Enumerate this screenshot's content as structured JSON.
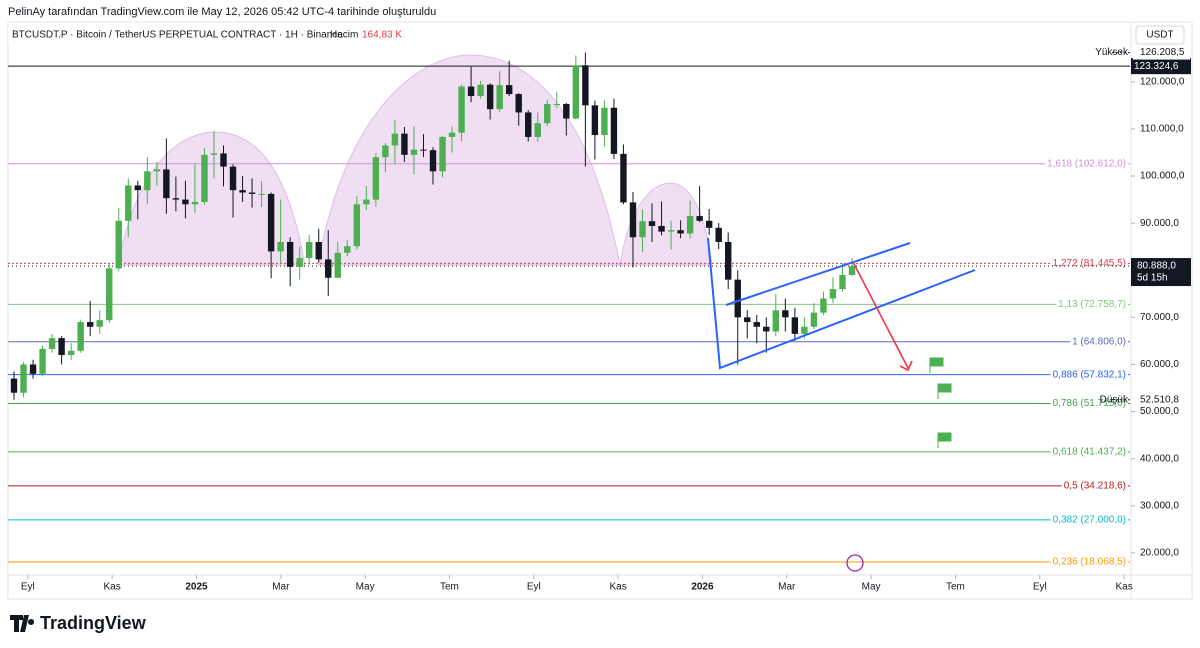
{
  "header": {
    "credit": "PelinAy tarafından TradingView.com ile May 12, 2026 05:42 UTC-4 tarihinde oluşturuldu",
    "symbol": "BTCUSDT.P · Bitcoin / TetherUS PERPETUAL CONTRACT · 1H · Binance",
    "volume_label": "Hacim",
    "volume": "164,83 K"
  },
  "axis_unit": "USDT",
  "footer": {
    "brand": "TradingView"
  },
  "chart_data": {
    "type": "candlestick",
    "up_color": "#4caf50",
    "down_color": "#131722",
    "candles": [
      [
        57000,
        58500,
        52510.8,
        54000
      ],
      [
        54000,
        60500,
        53000,
        60000
      ],
      [
        60000,
        61000,
        57000,
        58000
      ],
      [
        58000,
        64000,
        57500,
        63300
      ],
      [
        63300,
        66500,
        62500,
        65600
      ],
      [
        65600,
        66000,
        60000,
        62000
      ],
      [
        62000,
        64500,
        61000,
        62900
      ],
      [
        62900,
        69500,
        62500,
        69000
      ],
      [
        69000,
        73500,
        66000,
        68000
      ],
      [
        68000,
        71500,
        66500,
        69400
      ],
      [
        69400,
        81500,
        68800,
        80400
      ],
      [
        80400,
        93200,
        79800,
        90500
      ],
      [
        90500,
        99500,
        87000,
        98000
      ],
      [
        98000,
        99000,
        90800,
        97000
      ],
      [
        97000,
        104000,
        94000,
        101000
      ],
      [
        101000,
        103000,
        98000,
        101400
      ],
      [
        101400,
        108000,
        92000,
        95300
      ],
      [
        95300,
        99900,
        92500,
        95000
      ],
      [
        95000,
        99000,
        91000,
        94000
      ],
      [
        94000,
        102700,
        92200,
        94500
      ],
      [
        94500,
        106000,
        93900,
        104500
      ],
      [
        104500,
        109600,
        99500,
        104800
      ],
      [
        104800,
        106500,
        97800,
        102000
      ],
      [
        102000,
        102500,
        91200,
        97000
      ],
      [
        97000,
        100000,
        94500,
        96500
      ],
      [
        96500,
        99500,
        93300,
        96200
      ],
      [
        96200,
        98900,
        93400,
        96200
      ],
      [
        96200,
        96500,
        78300,
        84000
      ],
      [
        84000,
        95000,
        81500,
        86000
      ],
      [
        86000,
        87000,
        76600,
        80700
      ],
      [
        80700,
        85000,
        78000,
        82600
      ],
      [
        82600,
        87500,
        81200,
        86000
      ],
      [
        86000,
        88800,
        81600,
        82300
      ],
      [
        82300,
        88500,
        74500,
        78400
      ],
      [
        78400,
        86000,
        78300,
        83700
      ],
      [
        83700,
        86400,
        83000,
        85100
      ],
      [
        85100,
        95700,
        84300,
        94000
      ],
      [
        94000,
        97900,
        92800,
        95000
      ],
      [
        95000,
        104900,
        93500,
        104000
      ],
      [
        104000,
        107000,
        100800,
        106500
      ],
      [
        106500,
        111900,
        102600,
        109000
      ],
      [
        109000,
        110400,
        103000,
        104500
      ],
      [
        104500,
        110600,
        100400,
        105600
      ],
      [
        105600,
        108900,
        104000,
        105500
      ],
      [
        105500,
        106100,
        98200,
        101000
      ],
      [
        101000,
        108500,
        99700,
        108300
      ],
      [
        108300,
        110500,
        105000,
        109200
      ],
      [
        109200,
        119400,
        107400,
        119000
      ],
      [
        119000,
        123200,
        115700,
        117000
      ],
      [
        117000,
        120200,
        116500,
        119400
      ],
      [
        119400,
        119700,
        112000,
        114200
      ],
      [
        114200,
        122300,
        113700,
        119300
      ],
      [
        119300,
        124500,
        117000,
        117400
      ],
      [
        117400,
        117600,
        110700,
        113500
      ],
      [
        113500,
        114000,
        107300,
        108300
      ],
      [
        108300,
        113500,
        107300,
        111200
      ],
      [
        111200,
        116200,
        110600,
        115300
      ],
      [
        115300,
        117900,
        114400,
        115300
      ],
      [
        115300,
        115500,
        108600,
        112200
      ],
      [
        112200,
        125600,
        112000,
        123500
      ],
      [
        123500,
        126208.5,
        102000,
        115000
      ],
      [
        115000,
        116000,
        103500,
        108700
      ],
      [
        108700,
        116100,
        106300,
        114500
      ],
      [
        114500,
        116400,
        103600,
        104700
      ],
      [
        104700,
        106700,
        94000,
        94400
      ],
      [
        94400,
        96600,
        80600,
        87000
      ],
      [
        87000,
        92900,
        83800,
        90400
      ],
      [
        90400,
        94200,
        86000,
        89400
      ],
      [
        89400,
        94600,
        87400,
        88200
      ],
      [
        88200,
        90500,
        84400,
        88500
      ],
      [
        88500,
        90600,
        86800,
        87800
      ],
      [
        87800,
        94800,
        86800,
        91500
      ],
      [
        91500,
        97900,
        90200,
        90500
      ],
      [
        90500,
        93000,
        87500,
        89000
      ],
      [
        89000,
        90000,
        84500,
        86000
      ],
      [
        86000,
        88000,
        76000,
        78000
      ],
      [
        78000,
        80000,
        60000,
        70000
      ],
      [
        70000,
        71500,
        65500,
        69000
      ],
      [
        69000,
        70500,
        64500,
        68000
      ],
      [
        68000,
        70000,
        62500,
        67000
      ],
      [
        67000,
        75000,
        66000,
        71500
      ],
      [
        71500,
        74000,
        67000,
        70000
      ],
      [
        70000,
        72000,
        65000,
        66500
      ],
      [
        66500,
        70000,
        65500,
        68000
      ],
      [
        68000,
        73000,
        67500,
        71000
      ],
      [
        71000,
        75500,
        70500,
        74000
      ],
      [
        74000,
        78500,
        73000,
        76000
      ],
      [
        76000,
        81500,
        75500,
        79000
      ],
      [
        79000,
        82600,
        78800,
        80888
      ]
    ],
    "last_price_label": "80.888,0",
    "countdown": "5d 15h",
    "high_marker": {
      "name": "Yüksek",
      "value": 126208.5,
      "label": "126.208,5"
    },
    "low_marker": {
      "name": "Düşük",
      "value": 52510.8,
      "label": "52.510,8"
    },
    "hline": {
      "value": 123324.6,
      "label": "123.324,6",
      "color": "#131722"
    },
    "fib_levels": [
      {
        "value": 102612.0,
        "label": "1,618 (102.612,0)",
        "color": "#ce93d8"
      },
      {
        "value": 81445.5,
        "label": "1,272 (81.445,5)",
        "color": "#f23645"
      },
      {
        "value": 72758.7,
        "label": "1,13 (72.758,7)",
        "color": "#81c784"
      },
      {
        "value": 64806.0,
        "label": "1 (64.806,0)",
        "color": "#5c6bc0"
      },
      {
        "value": 57832.1,
        "label": "0,886 (57.832,1)",
        "color": "#2962ff"
      },
      {
        "value": 51715.0,
        "label": "0,786 (51.715,0)",
        "color": "#43a047"
      },
      {
        "value": 41437.2,
        "label": "0,618 (41.437,2)",
        "color": "#4caf50"
      },
      {
        "value": 34218.6,
        "label": "0,5 (34.218,6)",
        "color": "#b71c1c"
      },
      {
        "value": 27000.0,
        "label": "0,382 (27.000,0)",
        "color": "#00bcd4"
      },
      {
        "value": 18068.5,
        "label": "0,236 (18.068,5)",
        "color": "#ff9800"
      }
    ],
    "ylim": [
      15300,
      132700
    ],
    "yticks": [
      {
        "value": 120000,
        "label": "120.000,0"
      },
      {
        "value": 110000,
        "label": "110.000,0"
      },
      {
        "value": 100000,
        "label": "100.000,0"
      },
      {
        "value": 90000,
        "label": "90.000,0"
      },
      {
        "value": 70000,
        "label": "70.000,0"
      },
      {
        "value": 60000,
        "label": "60.000,0"
      },
      {
        "value": 50000,
        "label": "50.000,0"
      },
      {
        "value": 40000,
        "label": "40.000,0"
      },
      {
        "value": 30000,
        "label": "30.000,0"
      },
      {
        "value": 20000,
        "label": "20.000,0"
      }
    ],
    "xlim": [
      -0.47,
      26.14
    ],
    "xticks": [
      {
        "value": 0,
        "label": "Eyl"
      },
      {
        "value": 2,
        "label": "Kas"
      },
      {
        "value": 4,
        "label": "2025"
      },
      {
        "value": 6,
        "label": "Mar"
      },
      {
        "value": 8,
        "label": "May"
      },
      {
        "value": 10,
        "label": "Tem"
      },
      {
        "value": 12,
        "label": "Eyl"
      },
      {
        "value": 14,
        "label": "Kas"
      },
      {
        "value": 16,
        "label": "2026"
      },
      {
        "value": 18,
        "label": "Mar"
      },
      {
        "value": 20,
        "label": "May"
      },
      {
        "value": 22,
        "label": "Tem"
      },
      {
        "value": 24,
        "label": "Eyl"
      },
      {
        "value": 26,
        "label": "Kas"
      }
    ]
  }
}
